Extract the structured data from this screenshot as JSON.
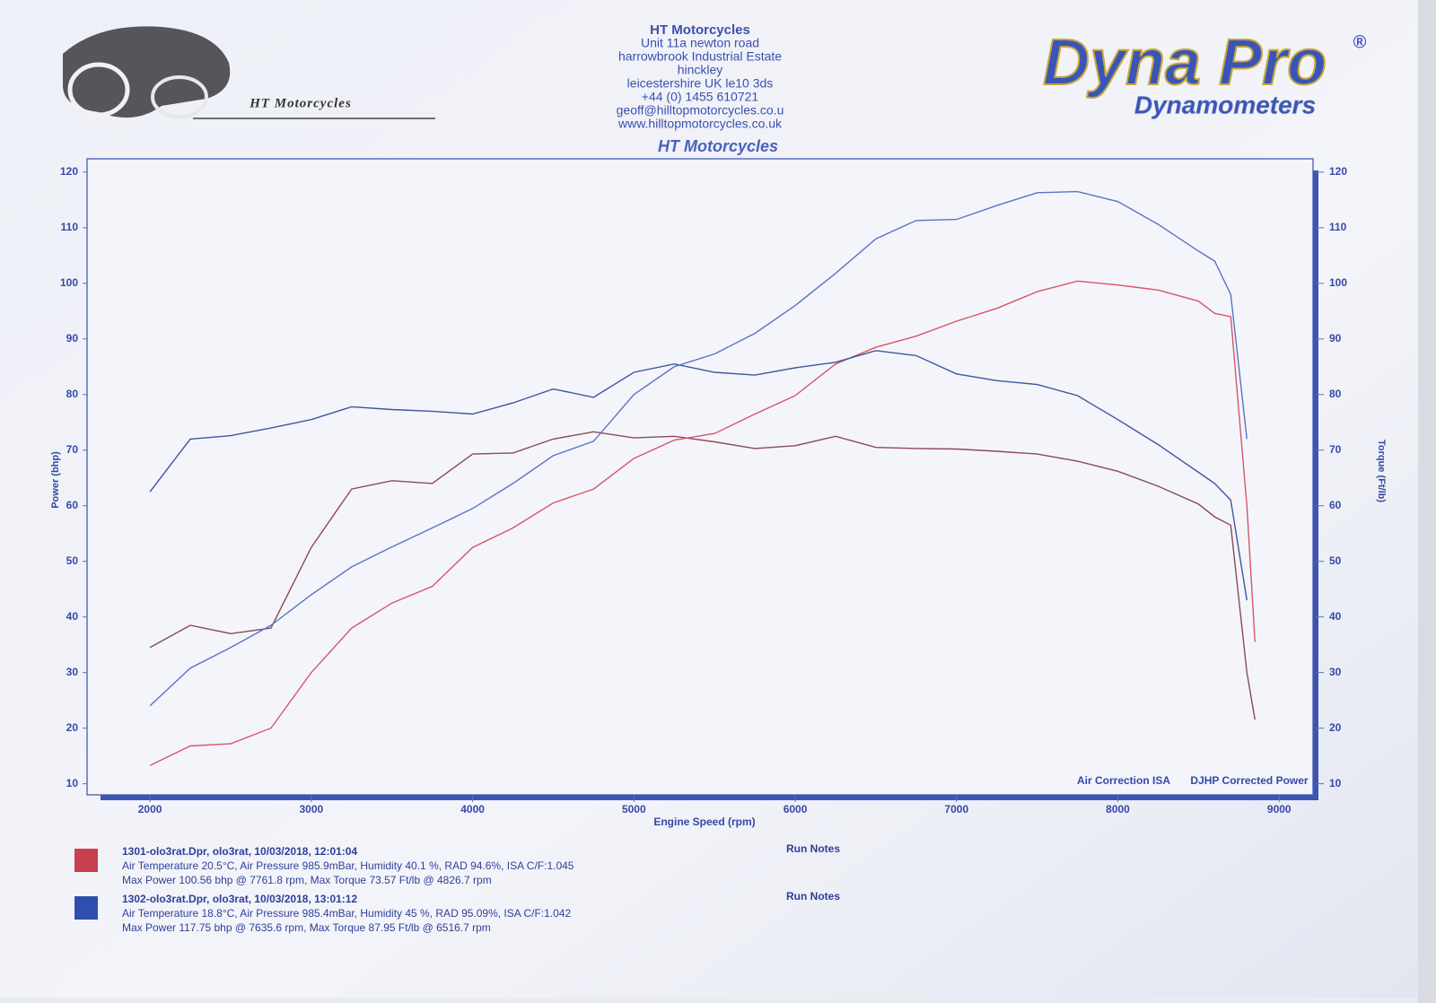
{
  "header": {
    "logo_text": "HT Motorcycles",
    "address": [
      "HT Motorcycles",
      "Unit 11a newton road",
      "harrowbrook  Industrial Estate",
      "hinckley",
      "leicestershire UK le10 3ds",
      "+44 (0) 1455 610721",
      "geoff@hilltopmotorcycles.co.u",
      "www.hilltopmotorcycles.co.uk"
    ],
    "brand": "Dyna Pro",
    "brand_mark": "®",
    "brand_sub": "Dynamometers"
  },
  "chart_data": {
    "type": "line",
    "title": "HT Motorcycles",
    "x_label": "Engine Speed (rpm)",
    "y_label": "Power (bhp)",
    "y2_label": "Torque (Ft/lb)",
    "annotations": [
      "Air Correction ISA",
      "DJHP Corrected Power"
    ],
    "x": [
      2000,
      2250,
      2500,
      2750,
      3000,
      3250,
      3500,
      3750,
      4000,
      4250,
      4500,
      4750,
      5000,
      5250,
      5500,
      5750,
      6000,
      6250,
      6500,
      6750,
      7000,
      7250,
      7500,
      7750,
      8000,
      8250,
      8500,
      8600,
      8700,
      8800,
      8850
    ],
    "xlim": [
      1610,
      9210
    ],
    "xticks": [
      2000,
      3000,
      4000,
      5000,
      6000,
      7000,
      8000,
      9000
    ],
    "ylim": [
      8,
      122.4
    ],
    "yticks": [
      10,
      20,
      30,
      40,
      50,
      60,
      70,
      80,
      90,
      100,
      110,
      120
    ],
    "y2lim": [
      8,
      122.4
    ],
    "y2ticks": [
      10,
      20,
      30,
      40,
      50,
      60,
      70,
      80,
      90,
      100,
      110,
      120
    ],
    "grid": false,
    "series": [
      {
        "name": "1301-olo3rat.Dpr,   olo3rat,   10/03/2018,   12:01:04",
        "color": "#d9546a",
        "torque_color": "#8a4a58",
        "legend_color": "#c8404f",
        "values": [
          13.3,
          16.8,
          17.2,
          20,
          30,
          38,
          42.5,
          45.5,
          52.5,
          56,
          60.5,
          63,
          68.5,
          71.8,
          73,
          76.5,
          79.8,
          85.5,
          88.5,
          90.5,
          93.2,
          95.5,
          98.5,
          100.4,
          99.7,
          98.8,
          96.8,
          94.6,
          94,
          60,
          35.5
        ],
        "torque_values": [
          34.5,
          38.5,
          37,
          38,
          52.5,
          63,
          64.5,
          64,
          69.3,
          69.5,
          72,
          73.3,
          72.2,
          72.5,
          71.5,
          70.3,
          70.8,
          72.5,
          70.5,
          70.3,
          70.2,
          69.8,
          69.3,
          68,
          66.2,
          63.5,
          60.3,
          58,
          56.5,
          30,
          21.5
        ],
        "notes": [
          "Air Temperature 20.5°C, Air Pressure 985.9mBar, Humidity 40.1 %, RAD 94.6%,   ISA  C/F:1.045",
          "Max Power 100.56 bhp @ 7761.8 rpm, Max Torque 73.57 Ft/lb @ 4826.7 rpm"
        ],
        "run_notes": "Run Notes"
      },
      {
        "name": "1302-olo3rat.Dpr,   olo3rat,   10/03/2018,   13:01:12",
        "color": "#5a74c4",
        "torque_color": "#3f55a0",
        "legend_color": "#2f4fb0",
        "values": [
          24,
          30.8,
          34.5,
          38.5,
          44,
          49,
          52.6,
          56,
          59.5,
          64,
          69,
          71.6,
          80,
          85,
          87.3,
          91,
          96,
          101.8,
          108,
          111.3,
          111.5,
          114,
          116.3,
          116.5,
          114.7,
          110.6,
          105.8,
          104,
          98,
          72,
          null
        ],
        "torque_values": [
          62.5,
          72,
          72.6,
          74,
          75.5,
          77.8,
          77.3,
          77,
          76.5,
          78.5,
          81,
          79.5,
          84,
          85.5,
          84,
          83.5,
          84.8,
          85.8,
          87.9,
          87,
          83.7,
          82.5,
          81.8,
          79.8,
          75.5,
          71,
          66,
          64,
          61,
          43,
          null
        ],
        "notes": [
          "Air Temperature 18.8°C, Air Pressure 985.4mBar, Humidity 45 %, RAD 95.09%,   ISA  C/F:1.042",
          "Max Power 117.75 bhp @ 7635.6 rpm, Max Torque 87.95 Ft/lb @ 6516.7 rpm"
        ],
        "run_notes": "Run Notes"
      }
    ]
  }
}
